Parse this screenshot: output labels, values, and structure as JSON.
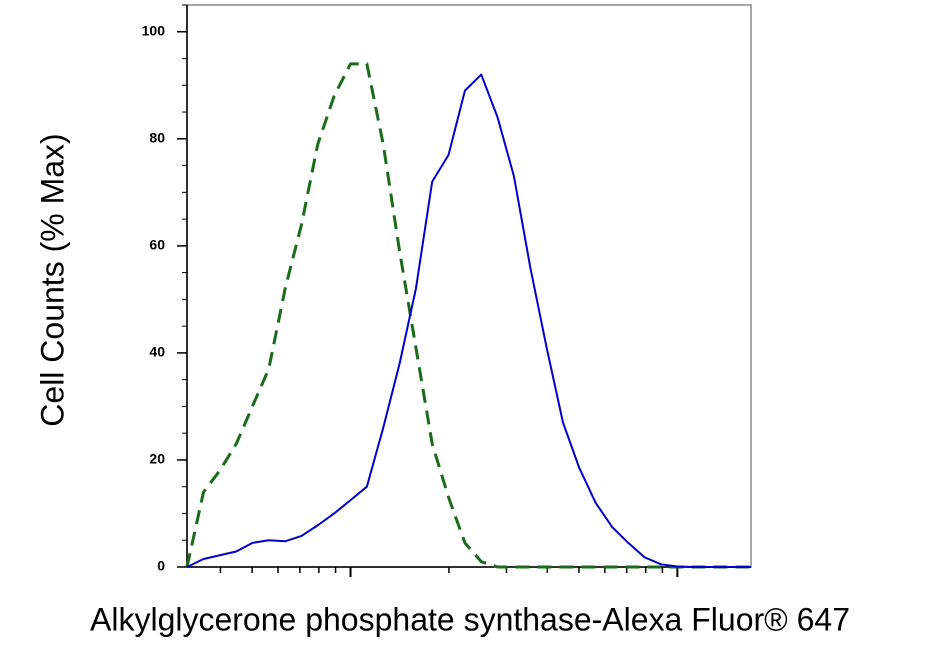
{
  "chart_data": {
    "type": "line",
    "xlabel": "Alkylglycerone phosphate synthase-Alexa Fluor® 647",
    "ylabel": "Cell Counts (% Max)",
    "x_log": true,
    "x": [
      316,
      355,
      398,
      447,
      501,
      562,
      631,
      708,
      794,
      891,
      1000,
      1122,
      1259,
      1413,
      1585,
      1778,
      1995,
      2239,
      2512,
      2818,
      3162,
      3548,
      3981,
      4467,
      5012,
      5623,
      6310,
      7079,
      7943,
      8913,
      10000,
      11220,
      12589,
      14125,
      15849,
      16800
    ],
    "series": [
      {
        "color": "#1a6b1a",
        "dashed": true,
        "values": [
          0,
          14,
          18,
          23,
          30,
          37,
          52,
          64,
          79,
          88,
          94,
          94,
          79,
          59,
          41,
          23,
          13,
          4.5,
          1,
          0,
          0,
          0,
          0,
          0,
          0,
          0,
          0,
          0,
          0,
          0,
          0,
          0,
          0,
          0,
          0,
          0
        ]
      },
      {
        "color": "#0000cc",
        "dashed": false,
        "values": [
          0,
          1.5,
          2.2,
          2.9,
          4.5,
          5,
          4.8,
          5.8,
          7.8,
          10,
          12.5,
          15,
          26,
          38,
          52,
          72,
          77,
          89,
          92,
          84,
          73,
          56,
          41,
          27,
          18.5,
          12,
          7.5,
          4.5,
          1.8,
          0.5,
          0.1,
          0,
          0,
          0,
          0,
          0
        ]
      }
    ],
    "xlim": [
      316,
      16800
    ],
    "xticks": [
      1000,
      10000
    ],
    "ylim": [
      0,
      105
    ],
    "yticks": [
      0,
      20,
      40,
      60,
      80,
      100
    ]
  }
}
